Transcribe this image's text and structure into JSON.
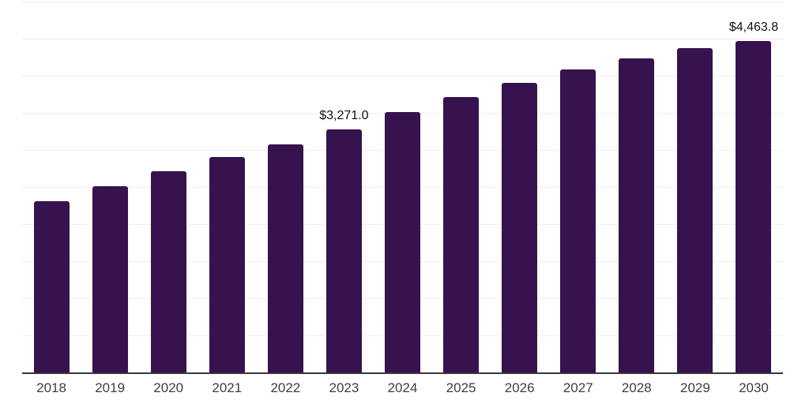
{
  "chart_data": {
    "type": "bar",
    "title": "",
    "xlabel": "",
    "ylabel": "",
    "categories": [
      "2018",
      "2019",
      "2020",
      "2021",
      "2022",
      "2023",
      "2024",
      "2025",
      "2026",
      "2027",
      "2028",
      "2029",
      "2030"
    ],
    "values": [
      2306,
      2508,
      2714,
      2902,
      3076,
      3271.0,
      3506,
      3715,
      3906,
      4081,
      4233,
      4368,
      4463.8
    ],
    "bar_labels": [
      "",
      "",
      "",
      "",
      "",
      "$3,271.0",
      "",
      "",
      "",
      "",
      "",
      "",
      "$4,463.8"
    ],
    "ylim": [
      0,
      5000
    ],
    "gridline_step": 500,
    "grid": "horizontal-only",
    "legend_position": "none",
    "colors": {
      "bar": "#36134E",
      "background": "#FFFFFF",
      "gridline": "#EFEDF0",
      "axis_line": "#383838",
      "value_label": "#111111",
      "tick_label": "#3E3E3E"
    }
  }
}
